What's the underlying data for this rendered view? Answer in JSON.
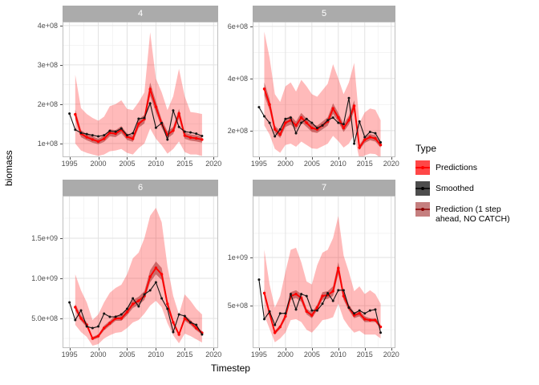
{
  "figure": {
    "ylabel": "biomass",
    "xlabel": "Timestep"
  },
  "legend": {
    "title": "Type",
    "items": [
      {
        "label": "Predictions",
        "type": "predictions"
      },
      {
        "label": "Smoothed",
        "type": "smoothed"
      },
      {
        "label": "Prediction (1 step ahead, NO CATCH)",
        "type": "no_catch"
      }
    ]
  },
  "colors": {
    "predictions": "#ff0000",
    "smoothed": "#141414",
    "ribbon": "rgba(255,0,0,0.27)",
    "no_catch_band": "rgba(139,0,0,0.42)",
    "strip_bg": "#ababab",
    "strip_text": "#ffffff",
    "grid_major": "#e2e2e2",
    "grid_minor": "#f0f0f0",
    "panel_border": "#bfbfbf",
    "axis_text": "#4d4d4d"
  },
  "chart_data": {
    "type": "line",
    "title": "",
    "xlabel": "Timestep",
    "ylabel": "biomass",
    "legend_position": "right",
    "grid": true,
    "xlim": [
      1993.8,
      2020.8
    ],
    "xticks": [
      1995,
      2000,
      2005,
      2010,
      2015,
      2020
    ],
    "xtick_labels": [
      "1995",
      "2000",
      "2005",
      "2010",
      "2015",
      "2020"
    ],
    "xminor": [
      1997.5,
      2002.5,
      2007.5,
      2012.5,
      2017.5
    ],
    "x_years": [
      1995,
      1996,
      1997,
      1998,
      1999,
      2000,
      2001,
      2002,
      2003,
      2004,
      2005,
      2006,
      2007,
      2008,
      2009,
      2010,
      2011,
      2012,
      2013,
      2014,
      2015,
      2016,
      2017,
      2018
    ],
    "pred_years": [
      1996,
      1997,
      1998,
      1999,
      2000,
      2001,
      2002,
      2003,
      2004,
      2005,
      2006,
      2007,
      2008,
      2009,
      2010,
      2011,
      2012,
      2013,
      2014,
      2015,
      2016,
      2017,
      2018
    ],
    "facets": [
      {
        "label": "4",
        "y_unit": 100000000,
        "ylim": [
          0.65,
          4.1
        ],
        "yticks": [
          {
            "v": 1,
            "label": "1e+08"
          },
          {
            "v": 2,
            "label": "2e+08"
          },
          {
            "v": 3,
            "label": "3e+08"
          },
          {
            "v": 4,
            "label": "4e+08"
          }
        ],
        "yminor": [
          1.5,
          2.5,
          3.5
        ],
        "smoothed": [
          1.76,
          1.35,
          1.27,
          1.24,
          1.21,
          1.18,
          1.21,
          1.32,
          1.3,
          1.38,
          1.21,
          1.26,
          1.63,
          1.65,
          2.02,
          1.4,
          1.52,
          1.1,
          1.84,
          1.42,
          1.3,
          1.28,
          1.25,
          1.19
        ],
        "predictions": [
          1.74,
          1.25,
          1.16,
          1.1,
          1.05,
          1.12,
          1.27,
          1.25,
          1.35,
          1.17,
          1.12,
          1.5,
          1.62,
          2.38,
          1.93,
          1.5,
          1.22,
          1.33,
          1.76,
          1.2,
          1.15,
          1.13,
          1.1
        ],
        "ribbon_upper": [
          2.75,
          1.9,
          1.75,
          1.65,
          1.58,
          1.68,
          1.95,
          2.0,
          2.1,
          1.88,
          1.85,
          2.05,
          2.3,
          3.83,
          2.65,
          2.3,
          1.85,
          2.2,
          2.9,
          2.2,
          1.8,
          1.78,
          1.75
        ],
        "ribbon_lower": [
          1.0,
          0.82,
          0.76,
          0.72,
          0.68,
          0.72,
          0.8,
          0.82,
          0.86,
          0.76,
          0.72,
          0.88,
          1.0,
          1.38,
          1.12,
          0.95,
          0.74,
          0.86,
          1.05,
          0.78,
          0.72,
          0.72,
          0.68
        ],
        "nc_upper": [
          1.86,
          1.34,
          1.24,
          1.18,
          1.12,
          1.2,
          1.36,
          1.34,
          1.44,
          1.25,
          1.2,
          1.61,
          1.73,
          2.55,
          2.07,
          1.61,
          1.31,
          1.42,
          1.88,
          1.28,
          1.23,
          1.21,
          1.18
        ],
        "nc_lower": [
          1.62,
          1.16,
          1.08,
          1.02,
          0.98,
          1.04,
          1.18,
          1.16,
          1.26,
          1.09,
          1.04,
          1.4,
          1.51,
          2.21,
          1.79,
          1.4,
          1.13,
          1.24,
          1.64,
          1.12,
          1.07,
          1.05,
          1.02
        ]
      },
      {
        "label": "5",
        "y_unit": 100000000,
        "ylim": [
          0.98,
          6.18
        ],
        "yticks": [
          {
            "v": 2,
            "label": "2e+08"
          },
          {
            "v": 4,
            "label": "4e+08"
          },
          {
            "v": 6,
            "label": "6e+08"
          }
        ],
        "yminor": [
          1,
          3,
          5
        ],
        "smoothed": [
          2.9,
          2.55,
          2.3,
          1.78,
          2.05,
          2.45,
          2.5,
          1.9,
          2.3,
          2.45,
          2.3,
          2.1,
          2.2,
          2.4,
          2.5,
          2.3,
          2.25,
          3.25,
          1.5,
          2.35,
          1.75,
          1.95,
          1.9,
          1.55
        ],
        "predictions": [
          3.6,
          3.0,
          2.05,
          1.85,
          2.3,
          2.4,
          2.2,
          2.5,
          2.3,
          2.1,
          2.05,
          2.2,
          2.35,
          2.85,
          2.5,
          2.1,
          2.4,
          2.95,
          1.35,
          1.65,
          1.75,
          1.7,
          1.45
        ],
        "ribbon_upper": [
          5.8,
          4.8,
          3.4,
          3.1,
          3.7,
          3.85,
          3.5,
          3.95,
          3.7,
          3.4,
          3.3,
          3.55,
          3.8,
          4.55,
          4.0,
          3.4,
          3.85,
          4.6,
          2.3,
          2.7,
          2.85,
          2.8,
          2.4
        ],
        "ribbon_lower": [
          2.2,
          1.85,
          1.3,
          1.15,
          1.45,
          1.5,
          1.38,
          1.58,
          1.45,
          1.32,
          1.3,
          1.4,
          1.5,
          1.8,
          1.6,
          1.35,
          1.5,
          1.85,
          0.9,
          1.05,
          1.12,
          1.1,
          0.95
        ],
        "nc_upper": [
          3.85,
          3.21,
          2.19,
          1.98,
          2.46,
          2.57,
          2.35,
          2.68,
          2.46,
          2.25,
          2.19,
          2.35,
          2.51,
          3.05,
          2.68,
          2.25,
          2.57,
          3.16,
          1.44,
          1.77,
          1.87,
          1.82,
          1.55
        ],
        "nc_lower": [
          3.35,
          2.79,
          1.91,
          1.72,
          2.14,
          2.23,
          2.05,
          2.33,
          2.14,
          1.95,
          1.91,
          2.05,
          2.19,
          2.65,
          2.33,
          1.95,
          2.23,
          2.74,
          1.26,
          1.53,
          1.63,
          1.58,
          1.35
        ]
      },
      {
        "label": "6",
        "y_unit": 1000000000,
        "ylim": [
          0.13,
          2.03
        ],
        "yticks": [
          {
            "v": 0.5,
            "label": "5.0e+08"
          },
          {
            "v": 1.0,
            "label": "1.0e+09"
          },
          {
            "v": 1.5,
            "label": "1.5e+09"
          }
        ],
        "yminor": [
          0.25,
          0.75,
          1.25,
          1.75
        ],
        "smoothed": [
          0.7,
          0.48,
          0.6,
          0.4,
          0.38,
          0.4,
          0.56,
          0.52,
          0.52,
          0.55,
          0.62,
          0.75,
          0.65,
          0.8,
          0.85,
          0.95,
          0.75,
          0.62,
          0.33,
          0.55,
          0.53,
          0.45,
          0.42,
          0.3
        ],
        "predictions": [
          0.64,
          0.5,
          0.42,
          0.25,
          0.28,
          0.38,
          0.44,
          0.5,
          0.5,
          0.58,
          0.68,
          0.72,
          0.78,
          1.02,
          1.13,
          1.05,
          0.68,
          0.45,
          0.3,
          0.5,
          0.45,
          0.38,
          0.32
        ],
        "ribbon_upper": [
          1.05,
          0.85,
          0.7,
          0.48,
          0.55,
          0.7,
          0.82,
          0.88,
          0.92,
          1.05,
          1.25,
          1.32,
          1.5,
          1.78,
          1.88,
          1.7,
          1.15,
          0.78,
          0.55,
          0.8,
          0.72,
          0.62,
          0.55
        ],
        "ribbon_lower": [
          0.42,
          0.33,
          0.27,
          0.16,
          0.18,
          0.25,
          0.29,
          0.32,
          0.33,
          0.38,
          0.45,
          0.48,
          0.56,
          0.66,
          0.72,
          0.64,
          0.44,
          0.29,
          0.19,
          0.31,
          0.28,
          0.24,
          0.2
        ],
        "nc_upper": [
          0.68,
          0.54,
          0.45,
          0.27,
          0.3,
          0.41,
          0.47,
          0.54,
          0.54,
          0.62,
          0.73,
          0.77,
          0.84,
          1.1,
          1.21,
          1.13,
          0.73,
          0.48,
          0.32,
          0.54,
          0.48,
          0.41,
          0.34
        ],
        "nc_lower": [
          0.6,
          0.47,
          0.39,
          0.23,
          0.26,
          0.35,
          0.41,
          0.47,
          0.47,
          0.54,
          0.63,
          0.67,
          0.73,
          0.95,
          1.05,
          0.98,
          0.63,
          0.42,
          0.28,
          0.47,
          0.42,
          0.35,
          0.3
        ]
      },
      {
        "label": "7",
        "y_unit": 1000000000,
        "ylim": [
          0.06,
          1.64
        ],
        "yticks": [
          {
            "v": 0.5,
            "label": "5e+08"
          },
          {
            "v": 1.0,
            "label": "1e+09"
          }
        ],
        "yminor": [
          0.25,
          0.75,
          1.25
        ],
        "smoothed": [
          0.77,
          0.36,
          0.44,
          0.3,
          0.42,
          0.42,
          0.62,
          0.46,
          0.62,
          0.6,
          0.45,
          0.45,
          0.52,
          0.63,
          0.55,
          0.66,
          0.66,
          0.48,
          0.42,
          0.45,
          0.42,
          0.45,
          0.46,
          0.22
        ],
        "predictions": [
          0.63,
          0.42,
          0.22,
          0.28,
          0.39,
          0.6,
          0.62,
          0.58,
          0.44,
          0.4,
          0.48,
          0.6,
          0.61,
          0.65,
          0.89,
          0.6,
          0.48,
          0.4,
          0.42,
          0.36,
          0.35,
          0.35,
          0.28
        ],
        "ribbon_upper": [
          1.08,
          0.72,
          0.48,
          0.6,
          0.85,
          1.08,
          1.1,
          0.95,
          0.75,
          0.72,
          0.92,
          1.05,
          1.08,
          1.2,
          1.43,
          1.02,
          0.85,
          0.65,
          0.7,
          0.62,
          0.66,
          0.62,
          0.52
        ],
        "ribbon_lower": [
          0.4,
          0.26,
          0.12,
          0.16,
          0.22,
          0.35,
          0.36,
          0.33,
          0.25,
          0.22,
          0.28,
          0.35,
          0.36,
          0.38,
          0.52,
          0.36,
          0.28,
          0.22,
          0.24,
          0.2,
          0.2,
          0.2,
          0.16
        ],
        "nc_upper": [
          0.67,
          0.45,
          0.24,
          0.3,
          0.42,
          0.64,
          0.66,
          0.62,
          0.47,
          0.43,
          0.51,
          0.64,
          0.65,
          0.7,
          0.95,
          0.64,
          0.51,
          0.43,
          0.45,
          0.39,
          0.37,
          0.37,
          0.3
        ],
        "nc_lower": [
          0.59,
          0.39,
          0.2,
          0.26,
          0.36,
          0.56,
          0.58,
          0.54,
          0.41,
          0.37,
          0.45,
          0.56,
          0.57,
          0.6,
          0.83,
          0.56,
          0.45,
          0.37,
          0.39,
          0.33,
          0.33,
          0.33,
          0.26
        ]
      }
    ]
  }
}
